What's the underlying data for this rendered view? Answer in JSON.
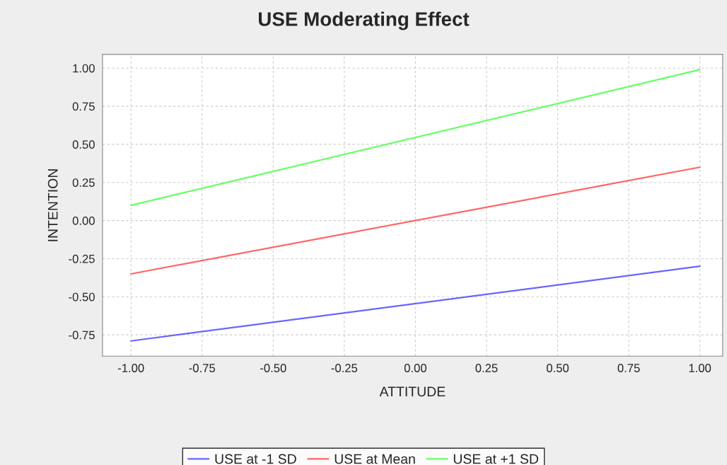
{
  "chart_data": {
    "type": "line",
    "title": "USE Moderating Effect",
    "xlabel": "ATTITUDE",
    "ylabel": "INTENTION",
    "x": [
      -1.0,
      1.0
    ],
    "series": [
      {
        "name": "USE at -1 SD",
        "color": "#6666ff",
        "values": [
          -0.79,
          -0.3
        ]
      },
      {
        "name": "USE at Mean",
        "color": "#ff6666",
        "values": [
          -0.35,
          0.35
        ]
      },
      {
        "name": "USE at +1 SD",
        "color": "#66ff66",
        "values": [
          0.1,
          0.99
        ]
      }
    ],
    "xlim": [
      -1.1,
      1.08
    ],
    "ylim": [
      -0.89,
      1.09
    ],
    "xticks": [
      {
        "value": -1.0,
        "label": "-1.00"
      },
      {
        "value": -0.75,
        "label": "-0.75"
      },
      {
        "value": -0.5,
        "label": "-0.50"
      },
      {
        "value": -0.25,
        "label": "-0.25"
      },
      {
        "value": 0.0,
        "label": "0.00"
      },
      {
        "value": 0.25,
        "label": "0.25"
      },
      {
        "value": 0.5,
        "label": "0.50"
      },
      {
        "value": 0.75,
        "label": "0.75"
      },
      {
        "value": 1.0,
        "label": "1.00"
      }
    ],
    "yticks": [
      {
        "value": -0.75,
        "label": "-0.75"
      },
      {
        "value": -0.5,
        "label": "-0.50"
      },
      {
        "value": -0.25,
        "label": "-0.25"
      },
      {
        "value": 0.0,
        "label": "0.00"
      },
      {
        "value": 0.25,
        "label": "0.25"
      },
      {
        "value": 0.5,
        "label": "0.50"
      },
      {
        "value": 0.75,
        "label": "0.75"
      },
      {
        "value": 1.0,
        "label": "1.00"
      }
    ],
    "grid": true,
    "legend": "bottom",
    "marker": "none",
    "line_style": "solid"
  }
}
